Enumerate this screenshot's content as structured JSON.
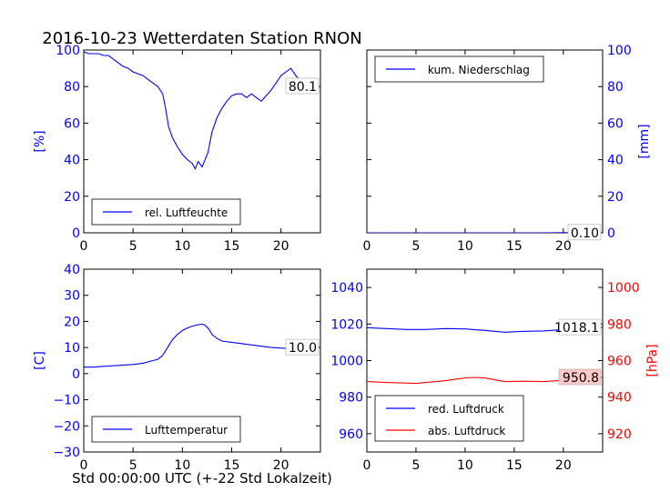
{
  "figure": {
    "title": "2016-10-23 Wetterdaten Station RNON",
    "xlabel": "Std 00:00:00 UTC (+-22 Std Lokalzeit)"
  },
  "colors": {
    "blue": "#0000ff",
    "red": "#ff0000",
    "axis": "#000000",
    "legend_edge": "#000000"
  },
  "chart_data": [
    {
      "type": "line",
      "panel": "top-left",
      "ylabel": "[%]",
      "xlim": [
        0,
        24
      ],
      "ylim": [
        0,
        100
      ],
      "xticks": [
        "0",
        "5",
        "10",
        "15",
        "20"
      ],
      "yticks": [
        "0",
        "20",
        "40",
        "60",
        "80",
        "100"
      ],
      "legend_placement": "lower-left",
      "annotation": "80.1",
      "series": [
        {
          "name": "rel. Luftfeuchte",
          "color": "#0000ff",
          "x": [
            0,
            0.5,
            1,
            1.5,
            2,
            2.5,
            3,
            3.5,
            4,
            4.5,
            5,
            5.5,
            6,
            6.5,
            7,
            7.5,
            8,
            8.3,
            8.6,
            9,
            9.5,
            10,
            10.5,
            11,
            11.3,
            11.6,
            12,
            12.3,
            12.6,
            13,
            13.5,
            14,
            14.5,
            15,
            15.5,
            16,
            16.5,
            17,
            17.5,
            18,
            18.5,
            19,
            19.5,
            20,
            20.5,
            21,
            21.5,
            22,
            22.5,
            23,
            23.5,
            24
          ],
          "y": [
            99,
            98,
            98,
            98,
            97,
            97,
            95,
            93,
            91,
            90,
            88,
            87,
            86,
            84,
            82,
            80,
            76,
            68,
            58,
            52,
            47,
            43,
            40,
            38,
            35,
            39,
            36,
            40,
            44,
            55,
            63,
            68,
            72,
            75,
            76,
            76,
            74,
            76,
            74,
            72,
            75,
            78,
            82,
            86,
            88,
            90,
            86,
            83,
            81,
            80,
            80,
            80.1
          ]
        }
      ]
    },
    {
      "type": "line",
      "panel": "top-right",
      "ylabel": "[mm]",
      "xlim": [
        0,
        24
      ],
      "ylim": [
        0,
        100
      ],
      "xticks": [
        "0",
        "5",
        "10",
        "15",
        "20"
      ],
      "yticks": [
        "0",
        "20",
        "40",
        "60",
        "80",
        "100"
      ],
      "legend_placement": "top-left",
      "annotation": "0.10",
      "series": [
        {
          "name": "kum. Niederschlag",
          "color": "#0000ff",
          "x": [
            0,
            6,
            12,
            18,
            20,
            24
          ],
          "y": [
            0,
            0,
            0,
            0,
            0.1,
            0.1
          ]
        }
      ]
    },
    {
      "type": "line",
      "panel": "bottom-left",
      "ylabel": "[C]",
      "xlim": [
        0,
        24
      ],
      "ylim": [
        -30,
        40
      ],
      "xticks": [
        "0",
        "5",
        "10",
        "15",
        "20"
      ],
      "yticks": [
        "−30",
        "−20",
        "−10",
        "0",
        "10",
        "20",
        "30",
        "40"
      ],
      "legend_placement": "lower-center",
      "annotation": "10.0",
      "series": [
        {
          "name": "Lufttemperatur",
          "color": "#0000ff",
          "x": [
            0,
            1,
            2,
            3,
            4,
            5,
            6,
            7,
            7.5,
            8,
            8.5,
            9,
            9.5,
            10,
            10.5,
            11,
            11.5,
            12,
            12.3,
            12.7,
            13,
            13.5,
            14,
            15,
            16,
            17,
            18,
            19,
            20,
            21,
            22,
            23,
            24
          ],
          "y": [
            2.5,
            2.5,
            2.8,
            3,
            3.3,
            3.5,
            4,
            5,
            5.5,
            7,
            10,
            13,
            15,
            16.5,
            17.5,
            18.2,
            18.6,
            19,
            18.5,
            17,
            15,
            13.5,
            12.5,
            12,
            11.5,
            11,
            10.5,
            10,
            9.8,
            9.5,
            9.7,
            9.8,
            10
          ]
        }
      ]
    },
    {
      "type": "line",
      "panel": "bottom-right",
      "ylabel": "[hPa]",
      "xlim": [
        0,
        24
      ],
      "ylim": [
        950,
        1050
      ],
      "ylim_right": [
        910,
        1010
      ],
      "xticks": [
        "0",
        "5",
        "10",
        "15",
        "20"
      ],
      "yticks": [
        "960",
        "980",
        "1000",
        "1020",
        "1040"
      ],
      "yticks_right": [
        "920",
        "940",
        "960",
        "980",
        "1000"
      ],
      "legend_placement": "lower-left",
      "annotations": [
        "1018.1",
        "950.8"
      ],
      "series": [
        {
          "name": "red. Luftdruck",
          "color": "#0000ff",
          "axis": "left",
          "x": [
            0,
            2,
            4,
            6,
            8,
            10,
            12,
            14,
            16,
            18,
            20,
            22,
            24
          ],
          "y": [
            1018,
            1017.5,
            1017,
            1017,
            1017.5,
            1017.3,
            1016.5,
            1015.5,
            1016,
            1016.2,
            1017,
            1017.8,
            1018.1
          ]
        },
        {
          "name": "abs. Luftdruck",
          "color": "#ff0000",
          "axis": "right",
          "x": [
            0,
            2,
            4,
            5,
            6,
            8,
            10,
            11,
            12,
            13,
            14,
            16,
            18,
            20,
            22,
            24
          ],
          "y": [
            948.5,
            948,
            947.7,
            947.5,
            948,
            949,
            950.5,
            950.8,
            950.5,
            949.5,
            948.5,
            948.7,
            948.5,
            949.2,
            950.2,
            950.8
          ]
        }
      ]
    }
  ]
}
